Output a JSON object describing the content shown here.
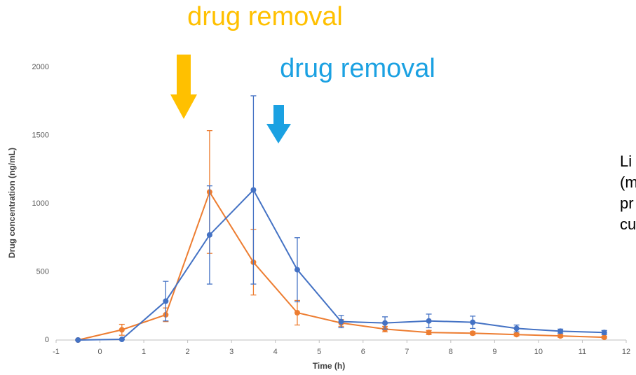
{
  "chart_data": {
    "type": "line",
    "x": [
      -0.5,
      0.5,
      1.5,
      2.5,
      3.5,
      4.5,
      5.5,
      6.5,
      7.5,
      8.5,
      9.5,
      10.5,
      11.5
    ],
    "series": [
      {
        "color": "#ed7d31",
        "values": [
          0,
          75,
          185,
          1085,
          570,
          200,
          125,
          80,
          55,
          50,
          40,
          30,
          20
        ],
        "errors": [
          0,
          40,
          50,
          450,
          240,
          90,
          25,
          20,
          15,
          12,
          10,
          10,
          8
        ]
      },
      {
        "color": "#4472c4",
        "values": [
          0,
          5,
          285,
          770,
          1100,
          515,
          135,
          125,
          140,
          130,
          85,
          65,
          55
        ],
        "errors": [
          0,
          0,
          145,
          360,
          690,
          235,
          45,
          45,
          50,
          45,
          25,
          15,
          15
        ]
      }
    ],
    "xlim": [
      -1,
      12
    ],
    "xticks": [
      -1,
      0,
      1,
      2,
      3,
      4,
      5,
      6,
      7,
      8,
      9,
      10,
      11,
      12
    ],
    "ylim": [
      0,
      2000
    ],
    "yticks": [
      0,
      500,
      1000,
      1500,
      2000
    ],
    "xlabel": "Time (h)",
    "ylabel": "Drug concentration (ng/mL)",
    "annotations": [
      {
        "text": "drug removal",
        "color": "#ffc000"
      },
      {
        "text": "drug removal",
        "color": "#1ba1e2"
      }
    ],
    "side_note": [
      "Li",
      "(m",
      "pr",
      "cu"
    ]
  }
}
